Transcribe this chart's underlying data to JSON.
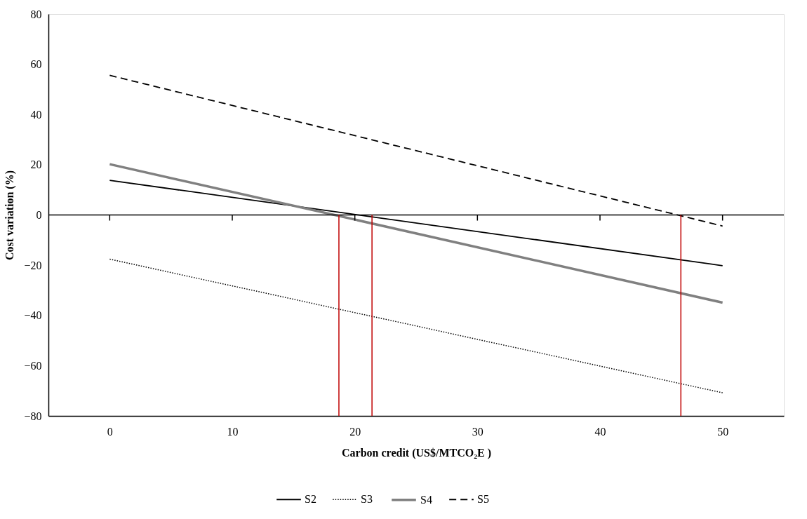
{
  "chart_data": {
    "type": "line",
    "xlabel": "Carbon credit (US$/MTCO₂E )",
    "ylabel": "Cost variation (%)",
    "x": [
      0,
      50
    ],
    "series": [
      {
        "name": "S2",
        "color": "#000000",
        "line_style": "solid",
        "values": [
          13.8,
          -20.2
        ]
      },
      {
        "name": "S3",
        "color": "#000000",
        "line_style": "dotted",
        "values": [
          -17.6,
          -70.8
        ]
      },
      {
        "name": "S4",
        "color": "#808080",
        "line_style": "solid",
        "values": [
          20.2,
          -34.9
        ]
      },
      {
        "name": "S5",
        "color": "#000000",
        "line_style": "dashed",
        "values": [
          55.6,
          -4.4
        ]
      }
    ],
    "xlim": [
      -5,
      55
    ],
    "xticks": [
      0,
      10,
      20,
      30,
      40,
      50
    ],
    "ylim": [
      -80,
      80
    ],
    "yticks": [
      -80,
      -60,
      -40,
      -20,
      0,
      20,
      40,
      60,
      80
    ],
    "ref_lines": [
      {
        "axis": "y",
        "value": 0,
        "color": "#000000"
      },
      {
        "axis": "x",
        "value": 18.7,
        "color": "#c00000"
      },
      {
        "axis": "x",
        "value": 21.4,
        "color": "#c00000"
      },
      {
        "axis": "x",
        "value": 46.6,
        "color": "#c00000"
      }
    ],
    "grid": false,
    "legend": "bottom",
    "marker": "none"
  }
}
